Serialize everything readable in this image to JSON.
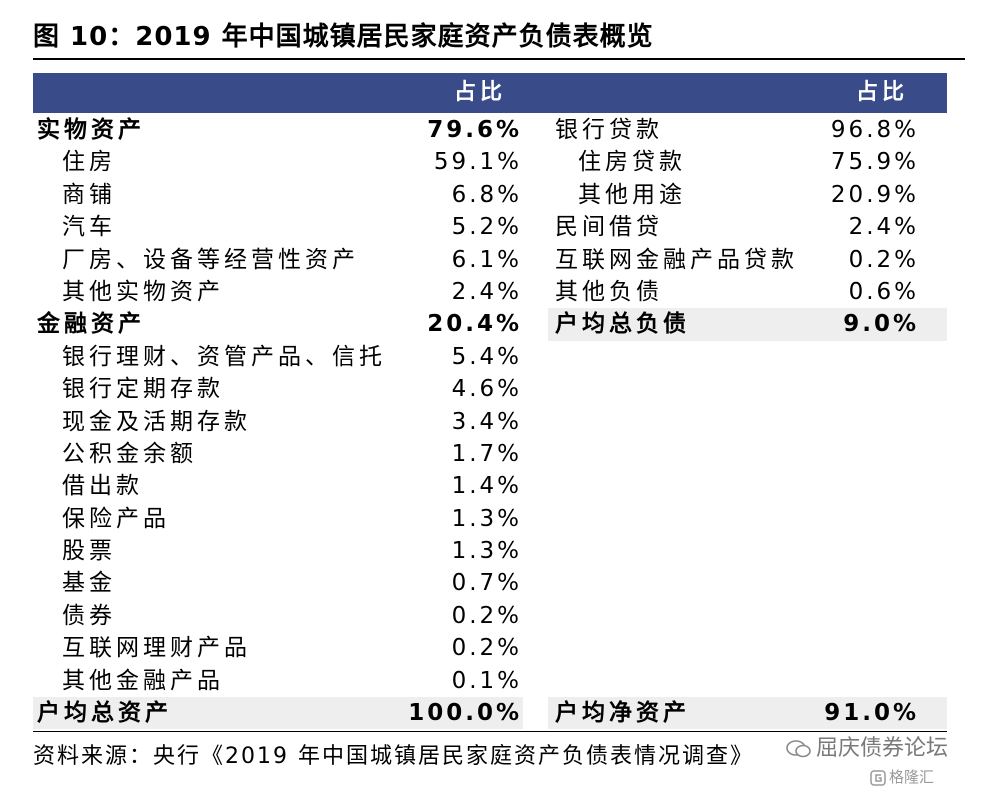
{
  "title": "图 10：2019 年中国城镇居民家庭资产负债表概览",
  "header": {
    "left_col": "占比",
    "right_col": "占比"
  },
  "assets": [
    {
      "label": "实物资产",
      "value": "79.6%",
      "bold": true,
      "indent": false,
      "shaded": false
    },
    {
      "label": "住房",
      "value": "59.1%",
      "bold": false,
      "indent": true,
      "shaded": false
    },
    {
      "label": "商铺",
      "value": "6.8%",
      "bold": false,
      "indent": true,
      "shaded": false
    },
    {
      "label": "汽车",
      "value": "5.2%",
      "bold": false,
      "indent": true,
      "shaded": false
    },
    {
      "label": "厂房、设备等经营性资产",
      "value": "6.1%",
      "bold": false,
      "indent": true,
      "shaded": false
    },
    {
      "label": "其他实物资产",
      "value": "2.4%",
      "bold": false,
      "indent": true,
      "shaded": false
    },
    {
      "label": "金融资产",
      "value": "20.4%",
      "bold": true,
      "indent": false,
      "shaded": false
    },
    {
      "label": "银行理财、资管产品、信托",
      "value": "5.4%",
      "bold": false,
      "indent": true,
      "shaded": false
    },
    {
      "label": "银行定期存款",
      "value": "4.6%",
      "bold": false,
      "indent": true,
      "shaded": false
    },
    {
      "label": "现金及活期存款",
      "value": "3.4%",
      "bold": false,
      "indent": true,
      "shaded": false
    },
    {
      "label": "公积金余额",
      "value": "1.7%",
      "bold": false,
      "indent": true,
      "shaded": false
    },
    {
      "label": "借出款",
      "value": "1.4%",
      "bold": false,
      "indent": true,
      "shaded": false
    },
    {
      "label": "保险产品",
      "value": "1.3%",
      "bold": false,
      "indent": true,
      "shaded": false
    },
    {
      "label": "股票",
      "value": "1.3%",
      "bold": false,
      "indent": true,
      "shaded": false
    },
    {
      "label": "基金",
      "value": "0.7%",
      "bold": false,
      "indent": true,
      "shaded": false
    },
    {
      "label": "债券",
      "value": "0.2%",
      "bold": false,
      "indent": true,
      "shaded": false
    },
    {
      "label": "互联网理财产品",
      "value": "0.2%",
      "bold": false,
      "indent": true,
      "shaded": false
    },
    {
      "label": "其他金融产品",
      "value": "0.1%",
      "bold": false,
      "indent": true,
      "shaded": false
    },
    {
      "label": "户均总资产",
      "value": "100.0%",
      "bold": true,
      "indent": false,
      "shaded": true
    }
  ],
  "liabilities": [
    {
      "label": "银行贷款",
      "value": "96.8%",
      "bold": false,
      "indent": false,
      "shaded": false
    },
    {
      "label": "住房贷款",
      "value": "75.9%",
      "bold": false,
      "indent": true,
      "shaded": false
    },
    {
      "label": "其他用途",
      "value": "20.9%",
      "bold": false,
      "indent": true,
      "shaded": false
    },
    {
      "label": "民间借贷",
      "value": "2.4%",
      "bold": false,
      "indent": false,
      "shaded": false
    },
    {
      "label": "互联网金融产品贷款",
      "value": "0.2%",
      "bold": false,
      "indent": false,
      "shaded": false
    },
    {
      "label": "其他负债",
      "value": "0.6%",
      "bold": false,
      "indent": false,
      "shaded": false
    },
    {
      "label": "户均总负债",
      "value": "9.0%",
      "bold": true,
      "indent": false,
      "shaded": true
    }
  ],
  "net_assets": {
    "label": "户均净资产",
    "value": "91.0%"
  },
  "source": "资料来源：央行《2019 年中国城镇居民家庭资产负债表情况调查》",
  "watermark": {
    "text1": "屈庆债券论坛",
    "text2": "格隆汇"
  }
}
